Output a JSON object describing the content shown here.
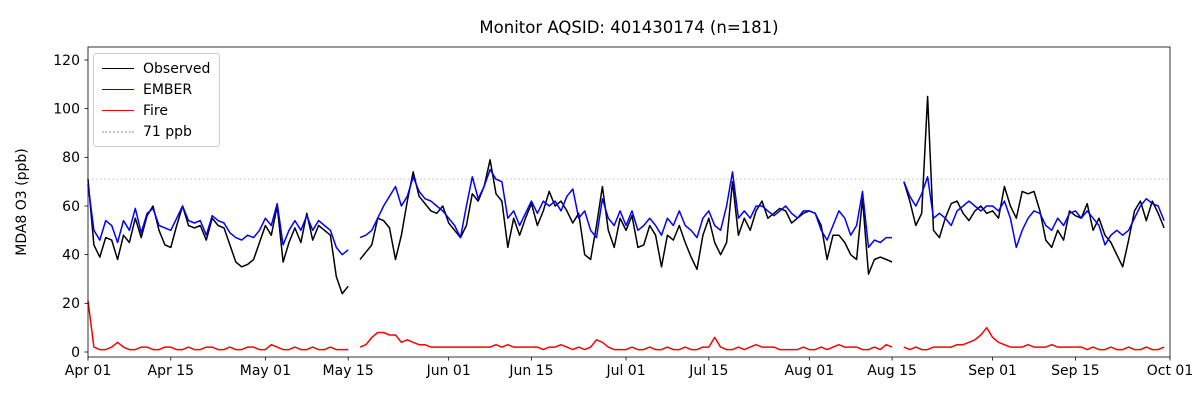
{
  "chart_data": {
    "type": "line",
    "title": "Monitor AQSID: 401430174 (n=181)",
    "xlabel": "",
    "ylabel": "MDA8 O3 (ppb)",
    "x_unit": "day index (0 = Apr 01, daily samples, Apr 01 through Sep 30)",
    "xlim_days": [
      0,
      183
    ],
    "ylim": [
      -2,
      125
    ],
    "y_ticks": [
      0,
      20,
      40,
      60,
      80,
      100,
      120
    ],
    "x_tick_days": [
      0,
      14,
      30,
      44,
      61,
      75,
      91,
      105,
      122,
      136,
      153,
      167,
      183
    ],
    "x_tick_labels": [
      "Apr 01",
      "Apr 15",
      "May 01",
      "May 15",
      "Jun 01",
      "Jun 15",
      "Jul 01",
      "Jul 15",
      "Aug 01",
      "Aug 15",
      "Sep 01",
      "Sep 15",
      "Oct 01"
    ],
    "grid": false,
    "legend_position": "upper left",
    "missing_days": [
      "May 16",
      "Aug 16"
    ],
    "threshold": {
      "value": 71,
      "label": "71 ppb",
      "color": "#c9c9c9",
      "line_style": "dotted"
    },
    "series": [
      {
        "name": "Observed",
        "color": "#000000",
        "line_style": "solid",
        "values": [
          71,
          44,
          39,
          47,
          46,
          38,
          48,
          45,
          55,
          47,
          56,
          60,
          50,
          44,
          43,
          52,
          60,
          52,
          51,
          52,
          46,
          55,
          52,
          51,
          44,
          37,
          35,
          36,
          38,
          45,
          52,
          48,
          60,
          37,
          45,
          51,
          45,
          57,
          46,
          52,
          50,
          48,
          31,
          24,
          27,
          null,
          38,
          41,
          44,
          55,
          54,
          51,
          38,
          48,
          62,
          74,
          64,
          61,
          58,
          57,
          60,
          53,
          50,
          47,
          52,
          65,
          62,
          68,
          79,
          65,
          62,
          43,
          55,
          48,
          55,
          61,
          52,
          58,
          66,
          60,
          62,
          58,
          53,
          57,
          40,
          38,
          52,
          68,
          50,
          43,
          55,
          50,
          56,
          43,
          44,
          52,
          48,
          35,
          48,
          46,
          52,
          45,
          39,
          34,
          48,
          55,
          45,
          40,
          45,
          70,
          48,
          55,
          50,
          58,
          62,
          55,
          57,
          59,
          58,
          53,
          55,
          57,
          58,
          57,
          52,
          38,
          48,
          48,
          45,
          40,
          38,
          63,
          32,
          38,
          39,
          38,
          37,
          null,
          70,
          62,
          52,
          57,
          105,
          50,
          47,
          55,
          61,
          62,
          57,
          54,
          58,
          60,
          57,
          58,
          55,
          68,
          60,
          55,
          66,
          65,
          66,
          58,
          46,
          43,
          50,
          46,
          58,
          56,
          55,
          61,
          50,
          55,
          48,
          45,
          40,
          35,
          46,
          58,
          62,
          54,
          62,
          57,
          51
        ]
      },
      {
        "name": "EMBER",
        "color": "#0000ff",
        "line_style": "solid",
        "values": [
          69,
          50,
          46,
          54,
          52,
          45,
          54,
          50,
          59,
          49,
          57,
          59,
          52,
          51,
          50,
          55,
          60,
          54,
          53,
          54,
          48,
          56,
          54,
          53,
          49,
          47,
          46,
          48,
          47,
          50,
          55,
          52,
          61,
          44,
          50,
          54,
          50,
          56,
          50,
          54,
          52,
          50,
          43,
          40,
          42,
          null,
          47,
          48,
          50,
          55,
          60,
          64,
          68,
          60,
          64,
          72,
          66,
          63,
          62,
          60,
          58,
          55,
          52,
          47,
          60,
          72,
          63,
          68,
          75,
          71,
          70,
          55,
          58,
          52,
          57,
          62,
          57,
          62,
          60,
          62,
          58,
          64,
          67,
          55,
          58,
          50,
          47,
          63,
          55,
          52,
          58,
          52,
          58,
          50,
          52,
          55,
          52,
          48,
          55,
          52,
          58,
          52,
          50,
          47,
          55,
          58,
          52,
          50,
          60,
          74,
          55,
          58,
          55,
          60,
          60,
          58,
          56,
          58,
          60,
          57,
          55,
          58,
          58,
          57,
          50,
          46,
          52,
          58,
          55,
          48,
          52,
          66,
          43,
          46,
          45,
          47,
          47,
          null,
          70,
          64,
          60,
          65,
          72,
          55,
          57,
          55,
          52,
          58,
          60,
          62,
          60,
          58,
          60,
          60,
          58,
          62,
          55,
          43,
          50,
          55,
          58,
          57,
          52,
          50,
          55,
          52,
          57,
          58,
          55,
          58,
          55,
          52,
          44,
          48,
          50,
          48,
          50,
          55,
          60,
          63,
          61,
          60,
          54
        ]
      },
      {
        "name": "Fire",
        "color": "#ff0000",
        "line_style": "solid",
        "values": [
          21,
          2,
          1,
          1,
          2,
          4,
          2,
          1,
          1,
          2,
          2,
          1,
          1,
          2,
          2,
          1,
          1,
          2,
          1,
          1,
          2,
          2,
          1,
          1,
          2,
          1,
          1,
          2,
          2,
          1,
          1,
          3,
          2,
          1,
          1,
          2,
          1,
          1,
          2,
          1,
          1,
          2,
          1,
          1,
          1,
          null,
          2,
          3,
          6,
          8,
          8,
          7,
          7,
          4,
          5,
          4,
          3,
          3,
          2,
          2,
          2,
          2,
          2,
          2,
          2,
          2,
          2,
          2,
          2,
          3,
          2,
          3,
          2,
          2,
          2,
          2,
          2,
          1,
          2,
          2,
          3,
          2,
          1,
          2,
          1,
          2,
          5,
          4,
          2,
          1,
          1,
          1,
          2,
          1,
          1,
          2,
          1,
          1,
          2,
          1,
          1,
          2,
          1,
          1,
          2,
          2,
          6,
          2,
          1,
          1,
          2,
          1,
          2,
          3,
          2,
          2,
          2,
          1,
          1,
          1,
          1,
          2,
          1,
          1,
          2,
          1,
          2,
          3,
          2,
          2,
          2,
          1,
          1,
          2,
          1,
          3,
          2,
          null,
          2,
          1,
          2,
          1,
          1,
          2,
          2,
          2,
          2,
          3,
          3,
          4,
          5,
          7,
          10,
          6,
          4,
          3,
          2,
          2,
          2,
          3,
          2,
          2,
          2,
          3,
          2,
          2,
          2,
          2,
          2,
          1,
          2,
          1,
          1,
          2,
          1,
          1,
          2,
          1,
          1,
          2,
          1,
          1,
          2
        ]
      }
    ]
  }
}
